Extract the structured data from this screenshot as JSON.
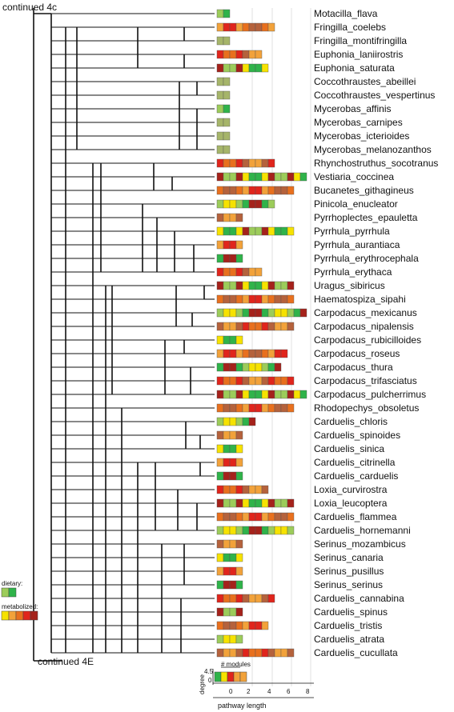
{
  "labels": {
    "continued_top": "continued 4c",
    "continued_bottom": "continued 4E",
    "dietary": "dietary:",
    "metabolized": "metabolized:",
    "modules": "# modules",
    "degree": "degree",
    "pathway_length": "pathway length",
    "degree_ticks": [
      "4.5",
      "0"
    ],
    "x_ticks": [
      "0",
      "2",
      "4",
      "6",
      "8"
    ]
  },
  "colors": {
    "green": "#2fb34a",
    "lightgreen": "#9ccc5a",
    "olive": "#a6b56a",
    "yellow": "#f6e200",
    "orange": "#f2a23a",
    "darkorange": "#e8701e",
    "red": "#e0251c",
    "darkred": "#a5221b",
    "brown": "#b5623c"
  },
  "taxa": [
    {
      "name": "Motacilla_flava",
      "blocks": 2
    },
    {
      "name": "Fringilla_coelebs",
      "blocks": 9
    },
    {
      "name": "Fringilla_montifringilla",
      "blocks": 2
    },
    {
      "name": "Euphonia_laniirostris",
      "blocks": 7
    },
    {
      "name": "Euphonia_saturata",
      "blocks": 8
    },
    {
      "name": "Coccothraustes_abeillei",
      "blocks": 2
    },
    {
      "name": "Coccothraustes_vespertinus",
      "blocks": 2
    },
    {
      "name": "Mycerobas_affinis",
      "blocks": 2
    },
    {
      "name": "Mycerobas_carnipes",
      "blocks": 2
    },
    {
      "name": "Mycerobas_icterioides",
      "blocks": 2
    },
    {
      "name": "Mycerobas_melanozanthos",
      "blocks": 2
    },
    {
      "name": "Rhynchostruthus_socotranus",
      "blocks": 9
    },
    {
      "name": "Vestiaria_coccinea",
      "blocks": 14
    },
    {
      "name": "Bucanetes_githagineus",
      "blocks": 12
    },
    {
      "name": "Pinicola_enucleator",
      "blocks": 9
    },
    {
      "name": "Pyrrhoplectes_epauletta",
      "blocks": 4
    },
    {
      "name": "Pyrrhula_pyrrhula",
      "blocks": 12
    },
    {
      "name": "Pyrrhula_aurantiaca",
      "blocks": 4
    },
    {
      "name": "Pyrrhula_erythrocephala",
      "blocks": 4
    },
    {
      "name": "Pyrrhula_erythaca",
      "blocks": 7
    },
    {
      "name": "Uragus_sibiricus",
      "blocks": 12
    },
    {
      "name": "Haematospiza_sipahi",
      "blocks": 12
    },
    {
      "name": "Carpodacus_mexicanus",
      "blocks": 14
    },
    {
      "name": "Carpodacus_nipalensis",
      "blocks": 12
    },
    {
      "name": "Carpodacus_rubicilloides",
      "blocks": 4
    },
    {
      "name": "Carpodacus_roseus",
      "blocks": 11
    },
    {
      "name": "Carpodacus_thura",
      "blocks": 10
    },
    {
      "name": "Carpodacus_trifasciatus",
      "blocks": 12
    },
    {
      "name": "Carpodacus_pulcherrimus",
      "blocks": 14
    },
    {
      "name": "Rhodopechys_obsoletus",
      "blocks": 12
    },
    {
      "name": "Carduelis_chloris",
      "blocks": 6
    },
    {
      "name": "Carduelis_spinoides",
      "blocks": 4
    },
    {
      "name": "Carduelis_sinica",
      "blocks": 4
    },
    {
      "name": "Carduelis_citrinella",
      "blocks": 4
    },
    {
      "name": "Carduelis_carduelis",
      "blocks": 4
    },
    {
      "name": "Loxia_curvirostra",
      "blocks": 8
    },
    {
      "name": "Loxia_leucoptera",
      "blocks": 12
    },
    {
      "name": "Carduelis_flammea",
      "blocks": 12
    },
    {
      "name": "Carduelis_hornemanni",
      "blocks": 12
    },
    {
      "name": "Serinus_mozambicus",
      "blocks": 4
    },
    {
      "name": "Serinus_canaria",
      "blocks": 4
    },
    {
      "name": "Serinus_pusillus",
      "blocks": 4
    },
    {
      "name": "Serinus_serinus",
      "blocks": 4
    },
    {
      "name": "Carduelis_cannabina",
      "blocks": 9
    },
    {
      "name": "Carduelis_spinus",
      "blocks": 4
    },
    {
      "name": "Carduelis_tristis",
      "blocks": 8
    },
    {
      "name": "Carduelis_atrata",
      "blocks": 4
    },
    {
      "name": "Carduelis_cucullata",
      "blocks": 12
    }
  ]
}
